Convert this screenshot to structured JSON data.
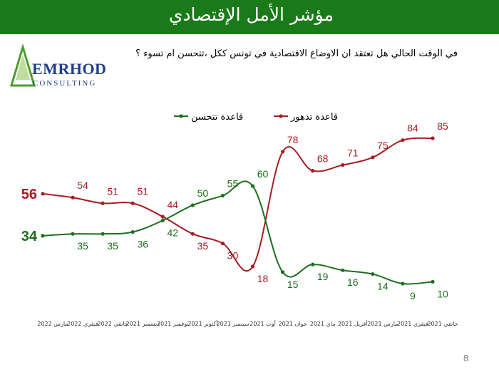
{
  "header": {
    "title": "مؤشر الأمل الإقتصادي"
  },
  "logo": {
    "name": "EMRHOD",
    "sub": "CONSULTING"
  },
  "question": "في الوقت الحالي هل تعتقد ان الاوضاع الاقتصادية في تونس ككل ،تتحسن ام تسوء ؟",
  "page_number": "8",
  "chart_data": {
    "type": "line",
    "title": "",
    "xlabel": "",
    "ylabel": "",
    "categories": [
      "جانفي 2021",
      "فيفري 2021",
      "مارس 2021",
      "أفريل 2021",
      "ماي 2021",
      "جوان 2021",
      "أوت 2021",
      "سبتمبر 2021",
      "أكتوبر 2021",
      "نوفمبر 2021",
      "ديسمبر 2021",
      "جانفي 2022",
      "فيفري 2022",
      "مارس 2022"
    ],
    "category_order": "right-to-left",
    "series": [
      {
        "name": "قاعدة تدهور",
        "color": "#a41e24",
        "values": [
          85,
          84,
          75,
          71,
          68,
          78,
          18,
          30,
          35,
          44,
          51,
          51,
          54,
          56
        ]
      },
      {
        "name": "قاعدة تتحسن",
        "color": "#1e6e1e",
        "values": [
          10,
          9,
          14,
          16,
          19,
          15,
          60,
          55,
          50,
          42,
          36,
          35,
          35,
          34
        ]
      }
    ],
    "legend_position": "top-center",
    "grid": false
  }
}
